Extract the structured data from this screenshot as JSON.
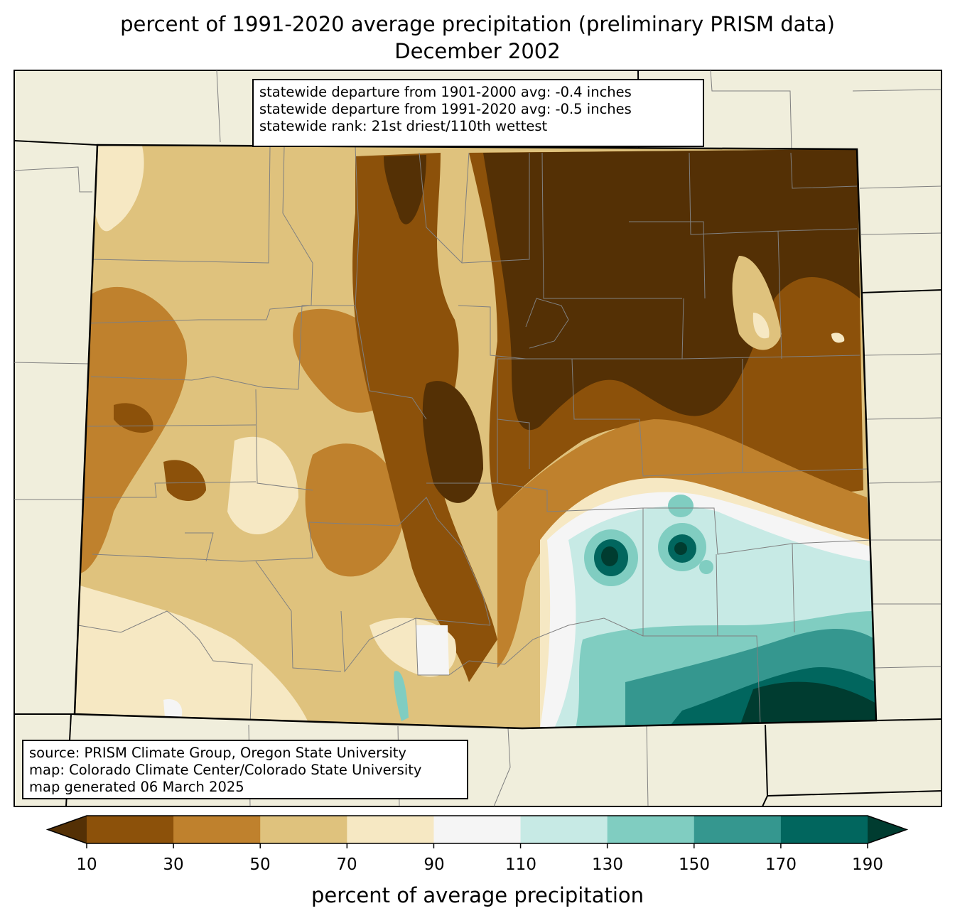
{
  "title": {
    "line1": "percent of 1991-2020 average precipitation (preliminary PRISM data)",
    "line2": "December 2002"
  },
  "stats": {
    "line1": "statewide departure from 1901-2000 avg: -0.4 inches",
    "line2": "statewide departure from 1991-2020 avg: -0.5 inches",
    "line3": "statewide rank: 21st driest/110th wettest"
  },
  "source": {
    "line1": "source: PRISM Climate Group, Oregon State University",
    "line2": "map: Colorado Climate Center/Colorado State University",
    "line3": "map generated 06 March 2025"
  },
  "colorbar": {
    "label": "percent of average precipitation",
    "ticks": [
      "10",
      "30",
      "50",
      "70",
      "90",
      "110",
      "130",
      "150",
      "170",
      "190"
    ],
    "colors": [
      "#543005",
      "#8c510a",
      "#bf812d",
      "#dfc27d",
      "#f6e8c3",
      "#f5f5f5",
      "#c7eae5",
      "#80cdc1",
      "#35978f",
      "#01665e",
      "#003c30"
    ],
    "background_color": "#f0eedc"
  }
}
